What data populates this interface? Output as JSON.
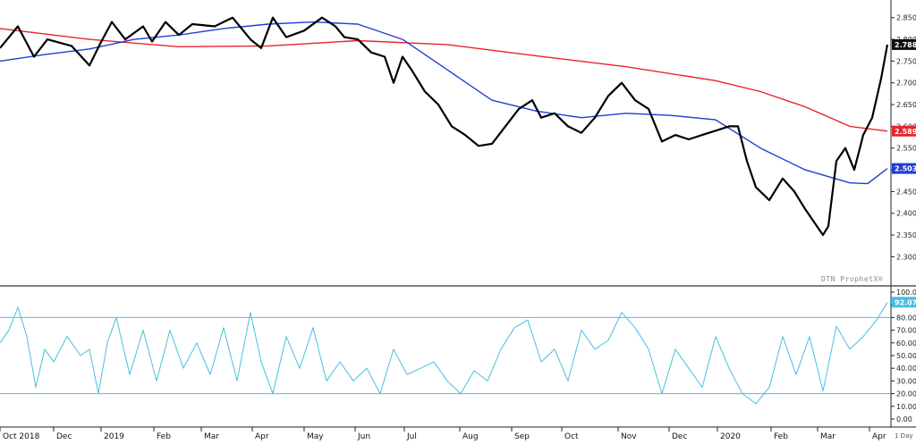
{
  "chart_data": [
    {
      "type": "line",
      "title": "",
      "ylim": [
        2.27,
        2.87
      ],
      "y_ticks": [
        "2.300",
        "2.350",
        "2.400",
        "2.450",
        "2.500",
        "2.550",
        "2.600",
        "2.650",
        "2.700",
        "2.750",
        "2.800",
        "2.850"
      ],
      "watermark": "DTN ProphetX®",
      "tags": {
        "price": "2.788",
        "ma_long": "2.589",
        "ma_short": "2.503"
      },
      "colors": {
        "price": "#000000",
        "ma_long": "#e8242a",
        "ma_short": "#1f3fd6"
      },
      "series": [
        {
          "role": "price",
          "x": [
            0,
            20,
            38,
            53,
            80,
            100,
            112,
            125,
            140,
            160,
            170,
            185,
            200,
            215,
            240,
            260,
            280,
            292,
            305,
            320,
            340,
            360,
            375,
            385,
            400,
            415,
            430,
            440,
            450,
            460,
            475,
            490,
            505,
            520,
            535,
            550,
            565,
            580,
            595,
            605,
            620,
            635,
            650,
            665,
            680,
            695,
            710,
            725,
            740,
            755,
            770,
            785,
            800,
            815,
            825,
            835,
            845,
            860,
            875,
            888,
            900,
            910,
            920,
            926,
            935,
            945,
            955,
            965,
            975,
            985,
            992
          ],
          "y": [
            2.78,
            2.83,
            2.76,
            2.8,
            2.785,
            2.74,
            2.79,
            2.84,
            2.8,
            2.83,
            2.795,
            2.84,
            2.81,
            2.835,
            2.83,
            2.85,
            2.8,
            2.78,
            2.85,
            2.805,
            2.82,
            2.85,
            2.83,
            2.805,
            2.8,
            2.77,
            2.76,
            2.7,
            2.76,
            2.73,
            2.68,
            2.65,
            2.6,
            2.58,
            2.555,
            2.56,
            2.6,
            2.64,
            2.66,
            2.62,
            2.63,
            2.6,
            2.585,
            2.62,
            2.67,
            2.7,
            2.66,
            2.64,
            2.565,
            2.58,
            2.57,
            2.58,
            2.59,
            2.6,
            2.6,
            2.52,
            2.46,
            2.43,
            2.48,
            2.45,
            2.41,
            2.38,
            2.35,
            2.37,
            2.52,
            2.55,
            2.5,
            2.58,
            2.62,
            2.71,
            2.788
          ]
        },
        {
          "role": "ma_long",
          "x": [
            0,
            100,
            200,
            300,
            400,
            500,
            600,
            700,
            800,
            850,
            900,
            950,
            992
          ],
          "y": [
            2.825,
            2.8,
            2.783,
            2.785,
            2.797,
            2.788,
            2.762,
            2.737,
            2.705,
            2.68,
            2.645,
            2.6,
            2.589
          ]
        },
        {
          "role": "ma_short",
          "x": [
            0,
            50,
            100,
            150,
            200,
            250,
            300,
            350,
            400,
            450,
            500,
            550,
            600,
            650,
            700,
            750,
            800,
            850,
            900,
            950,
            970,
            992
          ],
          "y": [
            2.75,
            2.765,
            2.778,
            2.8,
            2.81,
            2.825,
            2.835,
            2.84,
            2.835,
            2.8,
            2.73,
            2.66,
            2.635,
            2.62,
            2.63,
            2.625,
            2.615,
            2.55,
            2.5,
            2.47,
            2.468,
            2.503
          ]
        }
      ]
    },
    {
      "type": "line",
      "ylim": [
        0,
        100
      ],
      "y_ticks": [
        "100.00",
        "90.00",
        "80.00",
        "70.00",
        "60.00",
        "50.00",
        "40.00",
        "30.00",
        "20.00",
        "10.00",
        "0.00"
      ],
      "reference_lines": [
        80,
        20
      ],
      "value_tag": "92.07",
      "colors": {
        "line": "#47bfe0"
      },
      "series": [
        {
          "x": [
            0,
            10,
            20,
            30,
            40,
            50,
            60,
            75,
            90,
            100,
            110,
            120,
            130,
            145,
            160,
            175,
            190,
            205,
            220,
            235,
            250,
            265,
            280,
            292,
            305,
            320,
            335,
            350,
            365,
            380,
            395,
            410,
            425,
            440,
            455,
            470,
            485,
            500,
            515,
            530,
            545,
            560,
            575,
            590,
            605,
            620,
            635,
            650,
            665,
            680,
            695,
            710,
            725,
            740,
            755,
            770,
            785,
            800,
            815,
            830,
            845,
            860,
            875,
            890,
            905,
            920,
            935,
            950,
            965,
            980,
            992
          ],
          "y": [
            60,
            70,
            88,
            65,
            25,
            55,
            45,
            65,
            50,
            55,
            20,
            60,
            80,
            35,
            70,
            30,
            70,
            40,
            60,
            35,
            72,
            30,
            84,
            45,
            20,
            65,
            40,
            72,
            30,
            45,
            30,
            40,
            20,
            55,
            35,
            40,
            45,
            30,
            20,
            38,
            30,
            55,
            72,
            78,
            45,
            55,
            30,
            70,
            55,
            62,
            84,
            72,
            55,
            20,
            55,
            40,
            25,
            65,
            40,
            20,
            12,
            25,
            65,
            35,
            65,
            22,
            73,
            55,
            65,
            78,
            92
          ]
        }
      ]
    }
  ],
  "x_axis": {
    "labels": [
      "Oct 2018",
      "Dec",
      "2019",
      "Feb",
      "Mar",
      "Apr",
      "May",
      "Jun",
      "Jul",
      "Aug",
      "Sep",
      "Oct",
      "Nov",
      "Dec",
      "2020",
      "Feb",
      "Mar",
      "Apr"
    ]
  },
  "timeframe_label": "1 Day"
}
